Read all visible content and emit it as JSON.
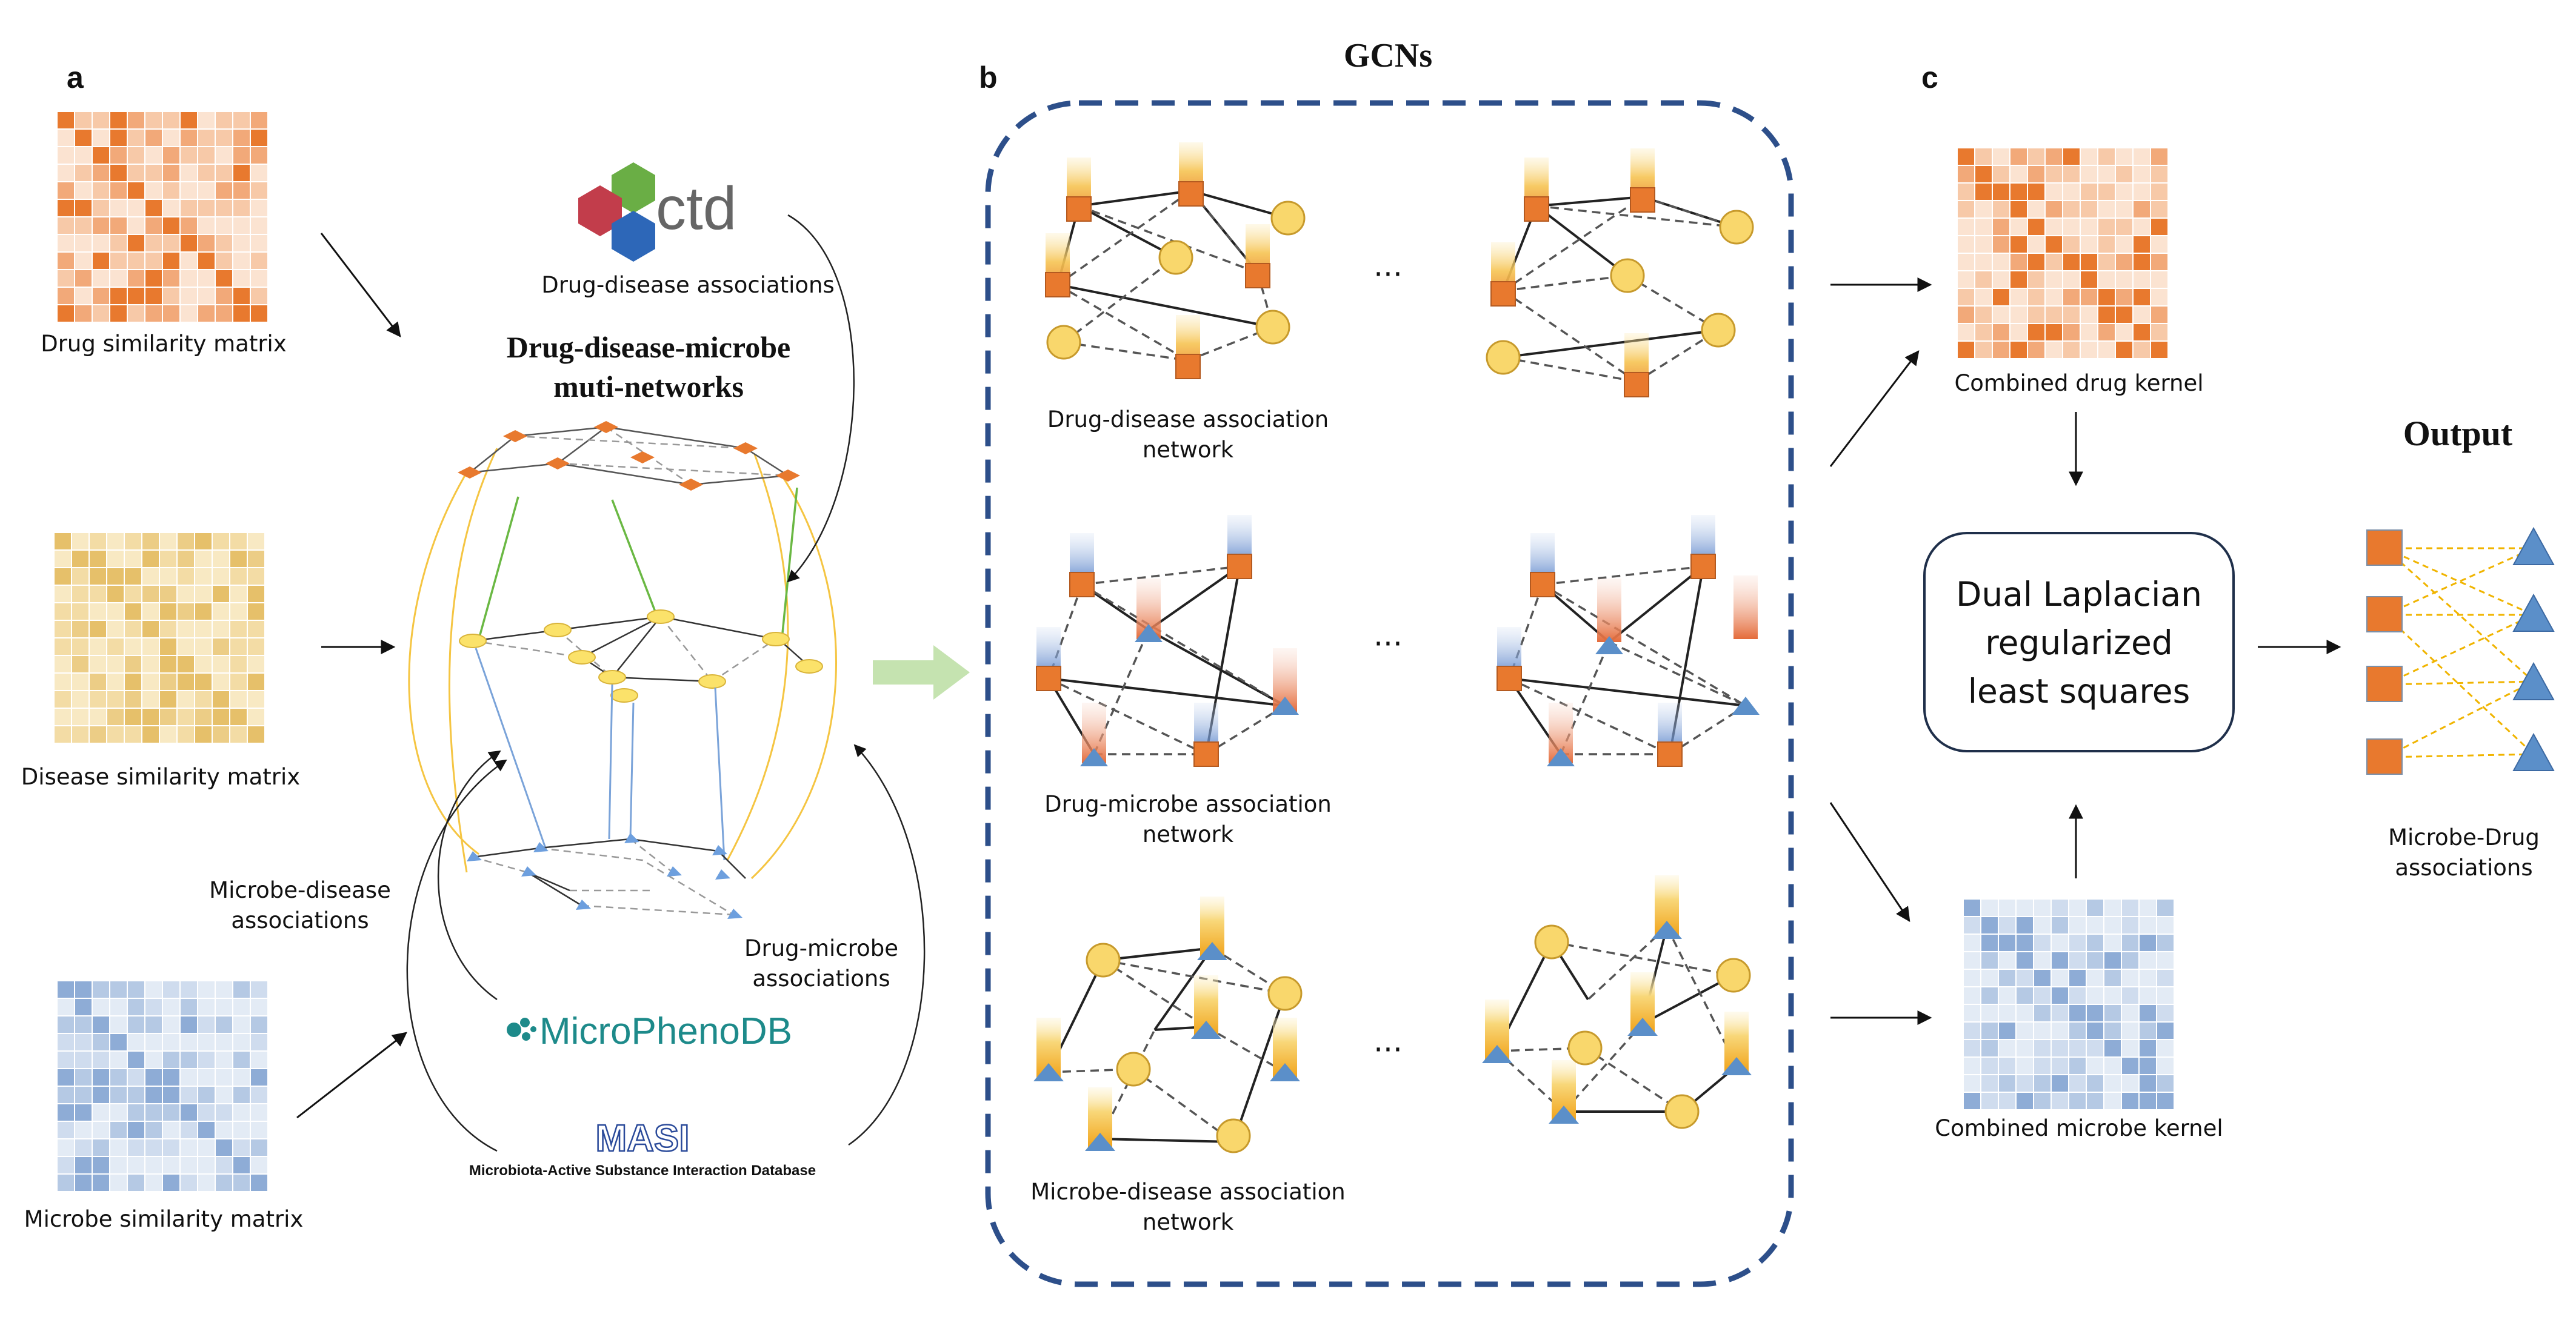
{
  "panel_a": {
    "letter": "a",
    "drug_matrix_label": "Drug similarity matrix",
    "disease_matrix_label": "Disease similarity matrix",
    "microbe_matrix_label": "Microbe similarity matrix",
    "network_title_line1": "Drug-disease-microbe",
    "network_title_line2": "muti-networks",
    "ctd_logo": "ctd",
    "drug_disease_label": "Drug-disease associations",
    "microbe_disease_line1": "Microbe-disease",
    "microbe_disease_line2": "associations",
    "drug_microbe_line1": "Drug-microbe",
    "drug_microbe_line2": "associations",
    "microphenodb_logo": "MicroPhenoDB",
    "masi_logo": "MASI",
    "masi_full_name": "Microbiota-Active Substance Interaction Database"
  },
  "panel_b": {
    "letter": "b",
    "title": "GCNs",
    "ellipsis": "···",
    "net1_line1": "Drug-disease association",
    "net1_line2": "network",
    "net2_line1": "Drug-microbe association",
    "net2_line2": "network",
    "net3_line1": "Microbe-disease association",
    "net3_line2": "network"
  },
  "panel_c": {
    "letter": "c",
    "drug_kernel_label": "Combined drug kernel",
    "microbe_kernel_label": "Combined microbe kernel",
    "method_line1": "Dual Laplacian",
    "method_line2": "regularized",
    "method_line3": "least squares",
    "output_title": "Output",
    "output_line1": "Microbe-Drug",
    "output_line2": "associations"
  },
  "colors": {
    "drug_orange": "#e8792e",
    "disease_yellow": "#f5cf5e",
    "microbe_blue": "#5b8fc9",
    "gcn_border": "#2d4f8a",
    "flow_arrow": "#c5e3b0",
    "dashed_assoc": "#f0b400"
  }
}
